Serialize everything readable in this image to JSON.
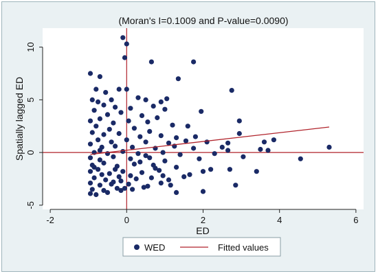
{
  "chart_data": {
    "type": "scatter",
    "title": "(Moran's I=0.1009 and P-value=0.0090)",
    "xlabel": "ED",
    "ylabel": "Spatially lagged ED",
    "xlim": [
      -2.2,
      6.2
    ],
    "ylim": [
      -5.4,
      11.8
    ],
    "x_ticks": [
      -2,
      0,
      2,
      4,
      6
    ],
    "y_ticks": [
      -5,
      0,
      5,
      10
    ],
    "grid": false,
    "legend_position": "bottom",
    "reference_lines": {
      "x": 0,
      "y": 0,
      "color": "#b0222a"
    },
    "series": [
      {
        "name": "WED",
        "type": "scatter",
        "color": "#1a2a66",
        "points": [
          [
            -0.1,
            10.9
          ],
          [
            0.0,
            10.3
          ],
          [
            -0.05,
            9.0
          ],
          [
            0.65,
            8.6
          ],
          [
            1.75,
            8.6
          ],
          [
            -0.95,
            7.5
          ],
          [
            -0.7,
            7.2
          ],
          [
            1.35,
            7.0
          ],
          [
            -0.8,
            6.0
          ],
          [
            -0.55,
            5.7
          ],
          [
            -0.2,
            6.0
          ],
          [
            0.0,
            6.0
          ],
          [
            2.75,
            5.9
          ],
          [
            -0.9,
            5.0
          ],
          [
            -0.75,
            4.8
          ],
          [
            -0.4,
            5.0
          ],
          [
            0.3,
            5.2
          ],
          [
            0.5,
            5.0
          ],
          [
            0.9,
            4.8
          ],
          [
            1.05,
            5.1
          ],
          [
            -0.6,
            4.5
          ],
          [
            -0.3,
            4.3
          ],
          [
            0.1,
            4.2
          ],
          [
            0.7,
            4.4
          ],
          [
            1.0,
            4.1
          ],
          [
            -0.85,
            4.0
          ],
          [
            -0.5,
            3.6
          ],
          [
            -0.15,
            3.8
          ],
          [
            0.4,
            3.5
          ],
          [
            0.8,
            3.3
          ],
          [
            1.95,
            3.9
          ],
          [
            -0.95,
            3.0
          ],
          [
            -0.7,
            3.2
          ],
          [
            -0.35,
            2.8
          ],
          [
            0.05,
            3.0
          ],
          [
            0.55,
            2.9
          ],
          [
            1.2,
            2.6
          ],
          [
            2.95,
            3.0
          ],
          [
            -0.8,
            2.5
          ],
          [
            -0.45,
            2.2
          ],
          [
            0.2,
            2.3
          ],
          [
            0.6,
            2.0
          ],
          [
            1.6,
            2.5
          ],
          [
            -0.9,
            1.9
          ],
          [
            -0.6,
            1.7
          ],
          [
            -0.2,
            1.8
          ],
          [
            0.35,
            1.5
          ],
          [
            0.9,
            1.6
          ],
          [
            1.3,
            1.4
          ],
          [
            1.8,
            1.5
          ],
          [
            2.95,
            1.8
          ],
          [
            -0.75,
            1.2
          ],
          [
            -0.4,
            1.0
          ],
          [
            0.0,
            1.2
          ],
          [
            0.5,
            1.0
          ],
          [
            1.1,
            0.9
          ],
          [
            1.55,
            1.1
          ],
          [
            2.1,
            1.0
          ],
          [
            2.65,
            0.9
          ],
          [
            3.6,
            1.0
          ],
          [
            3.85,
            1.2
          ],
          [
            -0.95,
            0.8
          ],
          [
            -0.65,
            0.5
          ],
          [
            -0.3,
            0.6
          ],
          [
            0.15,
            0.5
          ],
          [
            0.75,
            0.4
          ],
          [
            1.25,
            0.6
          ],
          [
            1.75,
            0.4
          ],
          [
            2.5,
            0.5
          ],
          [
            3.5,
            0.3
          ],
          [
            3.7,
            0.2
          ],
          [
            5.3,
            0.5
          ],
          [
            -0.85,
            0.0
          ],
          [
            -0.5,
            -0.1
          ],
          [
            -0.1,
            0.1
          ],
          [
            0.3,
            -0.1
          ],
          [
            0.95,
            0.0
          ],
          [
            1.4,
            -0.2
          ],
          [
            2.3,
            -0.1
          ],
          [
            2.65,
            0.2
          ],
          [
            3.05,
            -0.4
          ],
          [
            -0.95,
            -0.5
          ],
          [
            -0.7,
            -0.7
          ],
          [
            -0.35,
            -0.4
          ],
          [
            0.1,
            -0.6
          ],
          [
            0.6,
            -0.5
          ],
          [
            1.0,
            -0.8
          ],
          [
            1.9,
            -0.6
          ],
          [
            4.55,
            -0.6
          ],
          [
            3.4,
            -1.8
          ],
          [
            -0.9,
            -1.2
          ],
          [
            -0.6,
            -1.0
          ],
          [
            -0.25,
            -1.3
          ],
          [
            0.2,
            -1.1
          ],
          [
            0.7,
            -1.2
          ],
          [
            1.3,
            -1.4
          ],
          [
            2.2,
            -1.6
          ],
          [
            -0.95,
            -1.8
          ],
          [
            -0.75,
            -1.6
          ],
          [
            -0.45,
            -2.0
          ],
          [
            -0.1,
            -1.8
          ],
          [
            0.4,
            -1.9
          ],
          [
            0.85,
            -1.7
          ],
          [
            1.65,
            -2.1
          ],
          [
            2.0,
            -1.8
          ],
          [
            2.7,
            -1.6
          ],
          [
            -0.85,
            -2.4
          ],
          [
            -0.55,
            -2.6
          ],
          [
            -0.2,
            -2.3
          ],
          [
            0.25,
            -2.5
          ],
          [
            0.65,
            -2.4
          ],
          [
            1.1,
            -2.6
          ],
          [
            1.5,
            -2.3
          ],
          [
            -0.95,
            -2.9
          ],
          [
            -0.7,
            -3.1
          ],
          [
            -0.35,
            -2.8
          ],
          [
            0.05,
            -3.0
          ],
          [
            0.55,
            -3.2
          ],
          [
            0.9,
            -2.9
          ],
          [
            2.85,
            -3.1
          ],
          [
            -0.9,
            -3.5
          ],
          [
            -0.6,
            -3.6
          ],
          [
            -0.25,
            -3.4
          ],
          [
            0.15,
            -3.5
          ],
          [
            2.0,
            -3.7
          ],
          [
            -0.95,
            -3.9
          ],
          [
            -0.8,
            -4.0
          ],
          [
            -0.5,
            -3.8
          ],
          [
            -0.15,
            -3.6
          ],
          [
            1.3,
            -3.8
          ],
          [
            -0.05,
            -3.4
          ],
          [
            0.45,
            -3.3
          ],
          [
            0.1,
            -2.2
          ],
          [
            -0.3,
            -1.6
          ],
          [
            0.35,
            -0.9
          ],
          [
            -0.65,
            -2.1
          ],
          [
            -0.4,
            -3.0
          ],
          [
            0.75,
            -1.5
          ],
          [
            -0.85,
            -1.4
          ],
          [
            -0.15,
            -2.7
          ],
          [
            0.5,
            -0.3
          ],
          [
            1.15,
            -3.1
          ],
          [
            -0.7,
            0.2
          ],
          [
            0.95,
            -2.2
          ]
        ]
      },
      {
        "name": "Fitted values",
        "type": "line",
        "color": "#b0222a",
        "points": [
          [
            -0.95,
            -0.18
          ],
          [
            5.3,
            2.42
          ]
        ]
      }
    ]
  }
}
